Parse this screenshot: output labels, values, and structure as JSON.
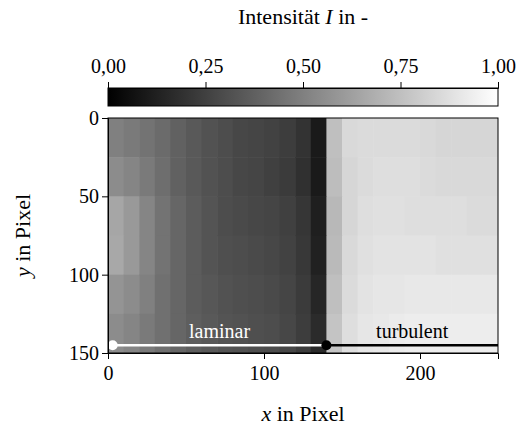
{
  "chart_data": {
    "type": "heatmap",
    "xlabel": "x in Pixel",
    "ylabel": "y in Pixel",
    "xlim": [
      0,
      250
    ],
    "ylim": [
      0,
      150
    ],
    "xticks": [
      0,
      100,
      200
    ],
    "yticks": [
      0,
      50,
      100,
      150
    ],
    "cells": {
      "x_edges": [
        0,
        10,
        20,
        30,
        40,
        50,
        60,
        70,
        80,
        90,
        100,
        110,
        120,
        130,
        140,
        150,
        160,
        170,
        180,
        190,
        200,
        210,
        220,
        230,
        240,
        250
      ],
      "y_edges": [
        0,
        25,
        50,
        75,
        100,
        125,
        150
      ],
      "values": [
        [
          0.5,
          0.48,
          0.45,
          0.42,
          0.38,
          0.35,
          0.32,
          0.3,
          0.28,
          0.27,
          0.26,
          0.24,
          0.2,
          0.1,
          0.75,
          0.85,
          0.86,
          0.86,
          0.86,
          0.86,
          0.85,
          0.84,
          0.84,
          0.84,
          0.84
        ],
        [
          0.55,
          0.52,
          0.48,
          0.43,
          0.38,
          0.35,
          0.32,
          0.3,
          0.28,
          0.27,
          0.25,
          0.23,
          0.19,
          0.1,
          0.74,
          0.84,
          0.86,
          0.87,
          0.87,
          0.87,
          0.86,
          0.85,
          0.85,
          0.85,
          0.85
        ],
        [
          0.65,
          0.6,
          0.52,
          0.45,
          0.4,
          0.36,
          0.33,
          0.3,
          0.29,
          0.28,
          0.27,
          0.25,
          0.21,
          0.12,
          0.72,
          0.84,
          0.87,
          0.88,
          0.88,
          0.87,
          0.87,
          0.87,
          0.87,
          0.86,
          0.86
        ],
        [
          0.66,
          0.6,
          0.52,
          0.45,
          0.4,
          0.36,
          0.33,
          0.31,
          0.3,
          0.29,
          0.28,
          0.26,
          0.22,
          0.13,
          0.73,
          0.85,
          0.88,
          0.89,
          0.89,
          0.89,
          0.89,
          0.88,
          0.88,
          0.88,
          0.88
        ],
        [
          0.58,
          0.55,
          0.5,
          0.44,
          0.4,
          0.36,
          0.34,
          0.32,
          0.31,
          0.3,
          0.29,
          0.27,
          0.23,
          0.15,
          0.75,
          0.86,
          0.89,
          0.9,
          0.9,
          0.91,
          0.91,
          0.91,
          0.91,
          0.91,
          0.91
        ],
        [
          0.55,
          0.52,
          0.48,
          0.44,
          0.4,
          0.37,
          0.35,
          0.33,
          0.32,
          0.31,
          0.3,
          0.28,
          0.24,
          0.17,
          0.77,
          0.87,
          0.9,
          0.91,
          0.92,
          0.93,
          0.93,
          0.93,
          0.93,
          0.93,
          0.93
        ]
      ]
    },
    "colorbar": {
      "label": "Intensität I in -",
      "range": [
        0,
        1
      ],
      "ticks": [
        {
          "value": 0,
          "label": "0,00"
        },
        {
          "value": 0.25,
          "label": "0,25"
        },
        {
          "value": 0.5,
          "label": "0,50"
        },
        {
          "value": 0.75,
          "label": "0,75"
        },
        {
          "value": 1,
          "label": "1,00"
        }
      ]
    },
    "annotations": [
      {
        "text": "laminar",
        "x": [
          3,
          140
        ],
        "y": 145,
        "color": "#ffffff"
      },
      {
        "text": "turbulent",
        "x": [
          140,
          250
        ],
        "y": 145,
        "color": "#000000"
      }
    ]
  }
}
